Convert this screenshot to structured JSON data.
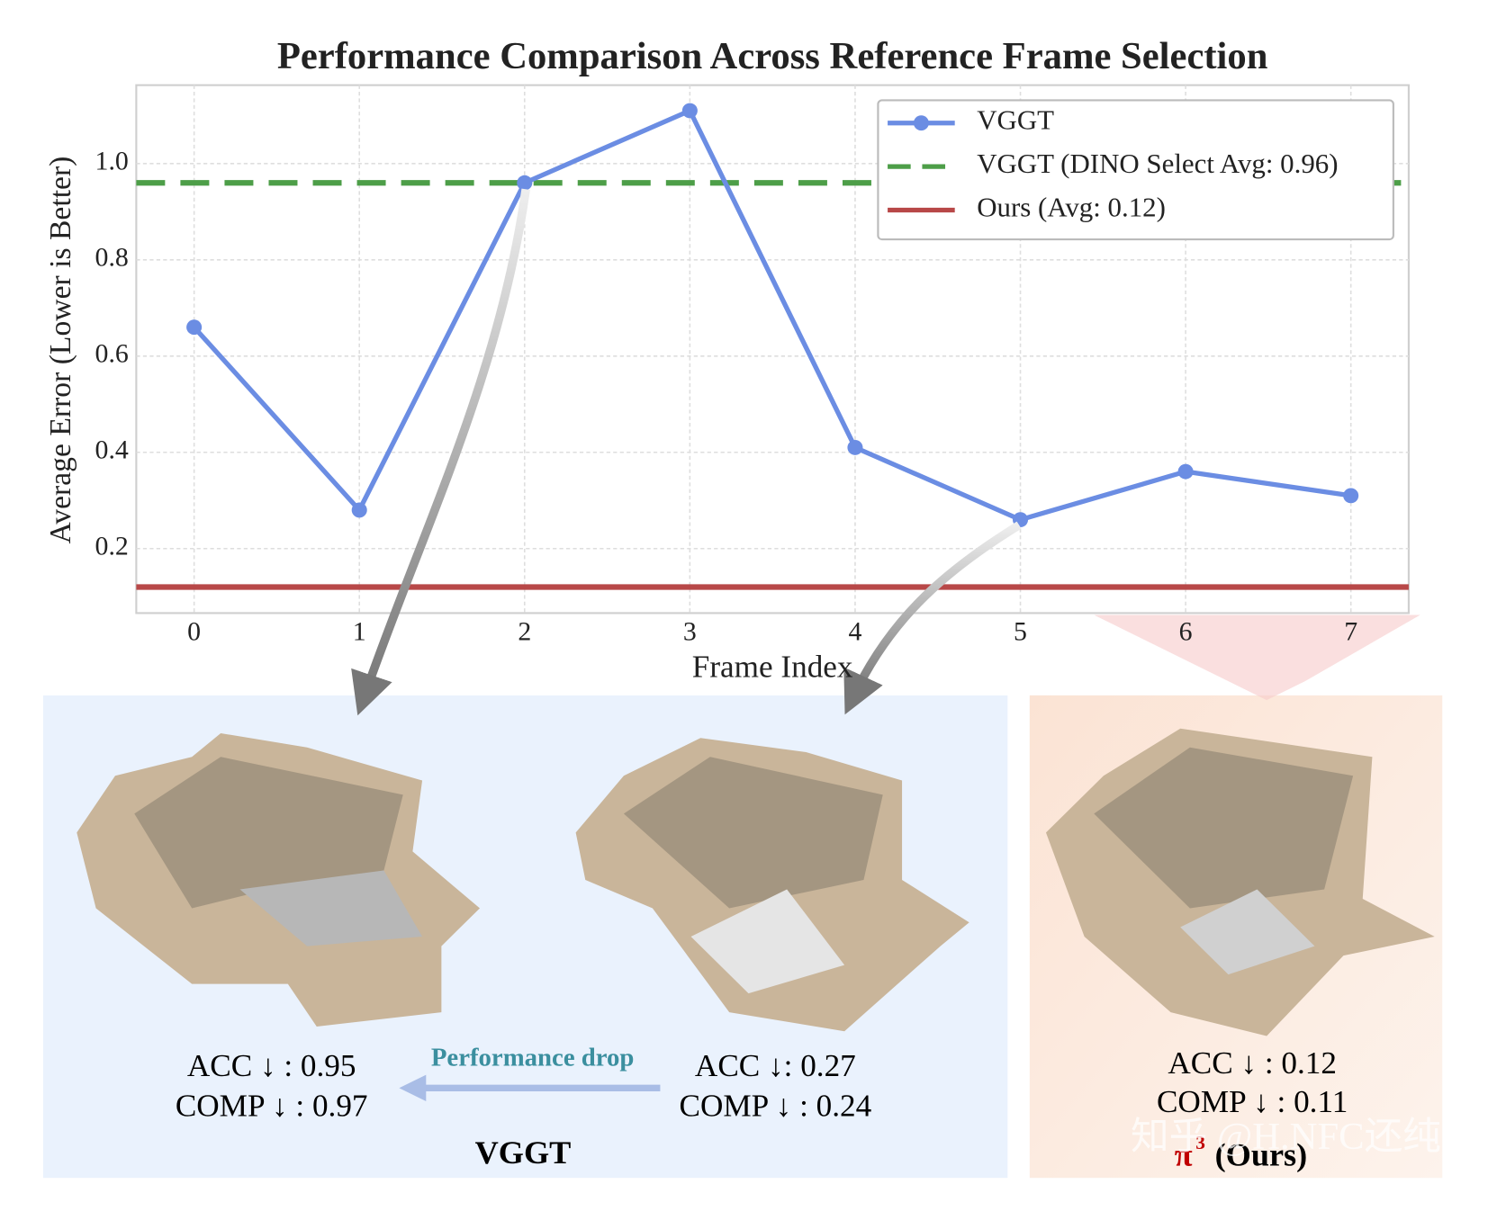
{
  "chart_data": {
    "type": "line",
    "title": "Performance Comparison Across Reference Frame Selection",
    "xlabel": "Frame Index",
    "ylabel": "Average Error (Lower is Better)",
    "x": [
      0,
      1,
      2,
      3,
      4,
      5,
      6,
      7
    ],
    "series": [
      {
        "name": "VGGT",
        "color": "#6b8de3",
        "values": [
          0.66,
          0.28,
          0.96,
          1.11,
          0.41,
          0.26,
          0.36,
          0.31
        ]
      }
    ],
    "reference_lines": [
      {
        "name": "VGGT (DINO Select Avg: 0.96)",
        "color": "#4d9e48",
        "value": 0.96,
        "style": "dashed"
      },
      {
        "name": "Ours (Avg: 0.12)",
        "color": "#b84848",
        "value": 0.12,
        "style": "solid"
      }
    ],
    "xlim": [
      -0.35,
      7.35
    ],
    "xticks": [
      0,
      1,
      2,
      3,
      4,
      5,
      6,
      7
    ],
    "ylim": [
      0.066,
      1.163
    ],
    "yticks": [
      0.2,
      0.4,
      0.6,
      0.8,
      {
        "value": 1,
        "label": "1.0"
      }
    ],
    "grid": true,
    "legend": "upper right"
  },
  "panels": {
    "left": {
      "acc": "ACC ↓ : 0.95",
      "comp": "COMP ↓ : 0.97"
    },
    "drop": "Performance drop",
    "middle": {
      "acc": "ACC ↓: 0.27",
      "comp": "COMP ↓ : 0.24"
    },
    "group_label": "VGGT",
    "right": {
      "acc": "ACC ↓ : 0.12",
      "comp": "COMP ↓ : 0.11",
      "symbol": "π",
      "sup": "3",
      "label": "(Ours)"
    }
  },
  "watermark": "知乎 @H.NFC还纯"
}
